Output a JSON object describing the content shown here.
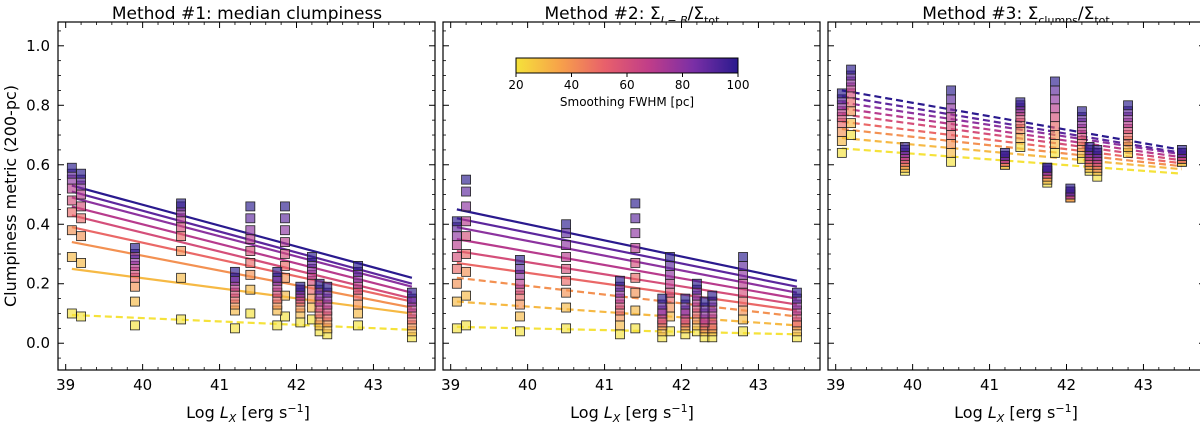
{
  "figure": {
    "ylabel": "Clumpiness metric (200-pc)",
    "xlabel_prefix": "Log ",
    "xlabel_var": "L",
    "xlabel_sub": "X",
    "xlabel_unit": " [erg s",
    "xlabel_exp": "−1",
    "xlabel_close": "]"
  },
  "colorbar": {
    "label": "Smoothing FWHM [pc]",
    "ticks": [
      "20",
      "40",
      "60",
      "80",
      "100"
    ],
    "range": [
      20,
      100
    ],
    "colors": [
      "#f5e23a",
      "#f7a14a",
      "#e8606b",
      "#c03d89",
      "#7a2fa6",
      "#2a1a8e"
    ]
  },
  "chart_data": [
    {
      "type": "scatter",
      "title": "Method #1: median clumpiness",
      "xlabel": "Log L_X [erg s^-1]",
      "ylabel": "Clumpiness metric (200-pc)",
      "xlim": [
        38.9,
        43.8
      ],
      "ylim": [
        -0.09,
        1.08
      ],
      "xticks": [
        39,
        40,
        41,
        42,
        43
      ],
      "yticks": [
        0.0,
        0.2,
        0.4,
        0.6,
        0.8,
        1.0
      ],
      "fwhm_levels": [
        20,
        30,
        40,
        50,
        60,
        70,
        80,
        90,
        100
      ],
      "x": [
        39.08,
        39.2,
        39.9,
        40.5,
        41.2,
        41.4,
        41.75,
        41.85,
        42.05,
        42.2,
        42.3,
        42.4,
        42.8,
        43.5
      ],
      "series": [
        {
          "name": "FWHM 20",
          "values": [
            0.1,
            0.09,
            0.06,
            0.08,
            0.05,
            0.1,
            0.06,
            0.09,
            0.07,
            0.08,
            0.04,
            0.03,
            0.06,
            0.02
          ]
        },
        {
          "name": "FWHM 30",
          "values": [
            0.29,
            0.27,
            0.14,
            0.22,
            0.11,
            0.18,
            0.11,
            0.16,
            0.1,
            0.12,
            0.06,
            0.05,
            0.1,
            0.04
          ]
        },
        {
          "name": "FWHM 40",
          "values": [
            0.38,
            0.36,
            0.19,
            0.31,
            0.13,
            0.23,
            0.13,
            0.22,
            0.12,
            0.15,
            0.08,
            0.07,
            0.13,
            0.06
          ]
        },
        {
          "name": "FWHM 50",
          "values": [
            0.44,
            0.42,
            0.22,
            0.36,
            0.15,
            0.27,
            0.15,
            0.26,
            0.14,
            0.18,
            0.1,
            0.09,
            0.16,
            0.08
          ]
        },
        {
          "name": "FWHM 60",
          "values": [
            0.48,
            0.46,
            0.24,
            0.39,
            0.17,
            0.31,
            0.17,
            0.3,
            0.15,
            0.21,
            0.12,
            0.11,
            0.18,
            0.1
          ]
        },
        {
          "name": "FWHM 70",
          "values": [
            0.52,
            0.5,
            0.26,
            0.42,
            0.19,
            0.35,
            0.19,
            0.34,
            0.16,
            0.23,
            0.14,
            0.13,
            0.2,
            0.12
          ]
        },
        {
          "name": "FWHM 80",
          "values": [
            0.55,
            0.53,
            0.28,
            0.44,
            0.21,
            0.38,
            0.21,
            0.38,
            0.17,
            0.25,
            0.16,
            0.15,
            0.22,
            0.14
          ]
        },
        {
          "name": "FWHM 90",
          "values": [
            0.57,
            0.55,
            0.3,
            0.46,
            0.22,
            0.42,
            0.22,
            0.42,
            0.18,
            0.27,
            0.18,
            0.17,
            0.24,
            0.15
          ]
        },
        {
          "name": "FWHM 100",
          "values": [
            0.59,
            0.57,
            0.32,
            0.47,
            0.24,
            0.46,
            0.24,
            0.46,
            0.19,
            0.29,
            0.2,
            0.19,
            0.26,
            0.17
          ]
        }
      ],
      "fits": [
        {
          "fwhm": 20,
          "y0": 0.095,
          "y1": 0.045,
          "style": "dashed"
        },
        {
          "fwhm": 30,
          "y0": 0.25,
          "y1": 0.1,
          "style": "solid"
        },
        {
          "fwhm": 40,
          "y0": 0.34,
          "y1": 0.12,
          "style": "solid"
        },
        {
          "fwhm": 50,
          "y0": 0.39,
          "y1": 0.14,
          "style": "solid"
        },
        {
          "fwhm": 60,
          "y0": 0.43,
          "y1": 0.15,
          "style": "solid"
        },
        {
          "fwhm": 70,
          "y0": 0.46,
          "y1": 0.17,
          "style": "solid"
        },
        {
          "fwhm": 80,
          "y0": 0.49,
          "y1": 0.19,
          "style": "solid"
        },
        {
          "fwhm": 90,
          "y0": 0.51,
          "y1": 0.2,
          "style": "solid"
        },
        {
          "fwhm": 100,
          "y0": 0.53,
          "y1": 0.22,
          "style": "solid"
        }
      ]
    },
    {
      "type": "scatter",
      "title_prefix": "Method #2: ",
      "title": "Method #2: Σ_{I−B}/Σ_tot",
      "xlabel": "Log L_X [erg s^-1]",
      "xlim": [
        38.9,
        43.8
      ],
      "ylim": [
        -0.09,
        1.08
      ],
      "xticks": [
        39,
        40,
        41,
        42,
        43
      ],
      "yticks": [
        0.0,
        0.2,
        0.4,
        0.6,
        0.8,
        1.0
      ],
      "fwhm_levels": [
        20,
        30,
        40,
        50,
        60,
        70,
        80,
        90,
        100
      ],
      "x": [
        39.08,
        39.2,
        39.9,
        40.5,
        41.2,
        41.4,
        41.75,
        41.85,
        42.05,
        42.2,
        42.3,
        42.4,
        42.8,
        43.5
      ],
      "series": [
        {
          "name": "FWHM 20",
          "values": [
            0.05,
            0.06,
            0.04,
            0.05,
            0.03,
            0.05,
            0.02,
            0.04,
            0.03,
            0.04,
            0.02,
            0.02,
            0.04,
            0.02
          ]
        },
        {
          "name": "FWHM 30",
          "values": [
            0.14,
            0.16,
            0.09,
            0.12,
            0.06,
            0.11,
            0.04,
            0.09,
            0.05,
            0.06,
            0.04,
            0.04,
            0.08,
            0.04
          ]
        },
        {
          "name": "FWHM 40",
          "values": [
            0.2,
            0.24,
            0.13,
            0.17,
            0.09,
            0.17,
            0.06,
            0.12,
            0.06,
            0.08,
            0.05,
            0.05,
            0.11,
            0.06
          ]
        },
        {
          "name": "FWHM 50",
          "values": [
            0.25,
            0.3,
            0.16,
            0.21,
            0.11,
            0.22,
            0.07,
            0.15,
            0.07,
            0.1,
            0.06,
            0.06,
            0.14,
            0.07
          ]
        },
        {
          "name": "FWHM 60",
          "values": [
            0.29,
            0.36,
            0.18,
            0.25,
            0.13,
            0.27,
            0.08,
            0.17,
            0.08,
            0.12,
            0.07,
            0.08,
            0.17,
            0.09
          ]
        },
        {
          "name": "FWHM 70",
          "values": [
            0.33,
            0.41,
            0.2,
            0.29,
            0.15,
            0.32,
            0.1,
            0.2,
            0.1,
            0.14,
            0.08,
            0.1,
            0.2,
            0.11
          ]
        },
        {
          "name": "FWHM 80",
          "values": [
            0.36,
            0.46,
            0.23,
            0.33,
            0.17,
            0.37,
            0.11,
            0.23,
            0.11,
            0.16,
            0.1,
            0.12,
            0.23,
            0.13
          ]
        },
        {
          "name": "FWHM 90",
          "values": [
            0.39,
            0.51,
            0.25,
            0.37,
            0.19,
            0.42,
            0.13,
            0.26,
            0.13,
            0.18,
            0.12,
            0.14,
            0.26,
            0.15
          ]
        },
        {
          "name": "FWHM 100",
          "values": [
            0.41,
            0.55,
            0.28,
            0.4,
            0.21,
            0.47,
            0.15,
            0.29,
            0.15,
            0.2,
            0.14,
            0.16,
            0.29,
            0.17
          ]
        }
      ],
      "fits": [
        {
          "fwhm": 20,
          "y0": 0.055,
          "y1": 0.03,
          "style": "dashed"
        },
        {
          "fwhm": 30,
          "y0": 0.14,
          "y1": 0.06,
          "style": "dashed"
        },
        {
          "fwhm": 40,
          "y0": 0.22,
          "y1": 0.09,
          "style": "dashed"
        },
        {
          "fwhm": 50,
          "y0": 0.27,
          "y1": 0.11,
          "style": "solid"
        },
        {
          "fwhm": 60,
          "y0": 0.31,
          "y1": 0.13,
          "style": "solid"
        },
        {
          "fwhm": 70,
          "y0": 0.35,
          "y1": 0.15,
          "style": "solid"
        },
        {
          "fwhm": 80,
          "y0": 0.39,
          "y1": 0.17,
          "style": "solid"
        },
        {
          "fwhm": 90,
          "y0": 0.42,
          "y1": 0.19,
          "style": "solid"
        },
        {
          "fwhm": 100,
          "y0": 0.45,
          "y1": 0.21,
          "style": "solid"
        }
      ]
    },
    {
      "type": "scatter",
      "title_prefix": "Method #3: ",
      "title": "Method #3: Σ_clumps/Σ_tot",
      "xlabel": "Log L_X [erg s^-1]",
      "xlim": [
        38.9,
        43.8
      ],
      "ylim": [
        -0.09,
        1.08
      ],
      "xticks": [
        39,
        40,
        41,
        42,
        43
      ],
      "yticks": [
        0.0,
        0.2,
        0.4,
        0.6,
        0.8,
        1.0
      ],
      "fwhm_levels": [
        20,
        30,
        40,
        50,
        60,
        70,
        80,
        90,
        100
      ],
      "x": [
        39.08,
        39.2,
        39.9,
        40.5,
        41.2,
        41.4,
        41.75,
        41.85,
        42.05,
        42.2,
        42.3,
        42.4,
        42.8,
        43.5
      ],
      "series": [
        {
          "name": "FWHM 20",
          "values": [
            0.64,
            0.7,
            0.58,
            0.61,
            0.6,
            0.66,
            0.54,
            0.64,
            0.49,
            0.62,
            0.58,
            0.56,
            0.64,
            0.61
          ]
        },
        {
          "name": "FWHM 30",
          "values": [
            0.68,
            0.74,
            0.59,
            0.64,
            0.6,
            0.69,
            0.55,
            0.67,
            0.49,
            0.64,
            0.59,
            0.58,
            0.66,
            0.61
          ]
        },
        {
          "name": "FWHM 40",
          "values": [
            0.71,
            0.78,
            0.6,
            0.67,
            0.61,
            0.72,
            0.56,
            0.7,
            0.49,
            0.66,
            0.6,
            0.59,
            0.68,
            0.62
          ]
        },
        {
          "name": "FWHM 50",
          "values": [
            0.74,
            0.81,
            0.61,
            0.7,
            0.61,
            0.74,
            0.57,
            0.73,
            0.5,
            0.68,
            0.61,
            0.6,
            0.7,
            0.62
          ]
        },
        {
          "name": "FWHM 60",
          "values": [
            0.76,
            0.84,
            0.62,
            0.73,
            0.62,
            0.76,
            0.57,
            0.76,
            0.5,
            0.7,
            0.62,
            0.61,
            0.72,
            0.63
          ]
        },
        {
          "name": "FWHM 70",
          "values": [
            0.78,
            0.86,
            0.63,
            0.76,
            0.62,
            0.78,
            0.58,
            0.79,
            0.5,
            0.72,
            0.63,
            0.62,
            0.74,
            0.63
          ]
        },
        {
          "name": "FWHM 80",
          "values": [
            0.8,
            0.88,
            0.64,
            0.79,
            0.63,
            0.79,
            0.58,
            0.82,
            0.51,
            0.74,
            0.64,
            0.63,
            0.76,
            0.64
          ]
        },
        {
          "name": "FWHM 90",
          "values": [
            0.82,
            0.9,
            0.65,
            0.82,
            0.63,
            0.8,
            0.59,
            0.85,
            0.51,
            0.76,
            0.65,
            0.64,
            0.78,
            0.64
          ]
        },
        {
          "name": "FWHM 100",
          "values": [
            0.84,
            0.92,
            0.66,
            0.85,
            0.64,
            0.81,
            0.59,
            0.88,
            0.52,
            0.78,
            0.66,
            0.65,
            0.8,
            0.65
          ]
        }
      ],
      "fits": [
        {
          "fwhm": 20,
          "y0": 0.655,
          "y1": 0.57,
          "style": "dashed"
        },
        {
          "fwhm": 30,
          "y0": 0.69,
          "y1": 0.585,
          "style": "dashed"
        },
        {
          "fwhm": 40,
          "y0": 0.72,
          "y1": 0.595,
          "style": "dashed"
        },
        {
          "fwhm": 50,
          "y0": 0.745,
          "y1": 0.605,
          "style": "dashed"
        },
        {
          "fwhm": 60,
          "y0": 0.77,
          "y1": 0.615,
          "style": "dashed"
        },
        {
          "fwhm": 70,
          "y0": 0.79,
          "y1": 0.625,
          "style": "dashed"
        },
        {
          "fwhm": 80,
          "y0": 0.81,
          "y1": 0.635,
          "style": "dashed"
        },
        {
          "fwhm": 90,
          "y0": 0.83,
          "y1": 0.64,
          "style": "dashed"
        },
        {
          "fwhm": 100,
          "y0": 0.85,
          "y1": 0.65,
          "style": "dashed"
        }
      ]
    }
  ]
}
